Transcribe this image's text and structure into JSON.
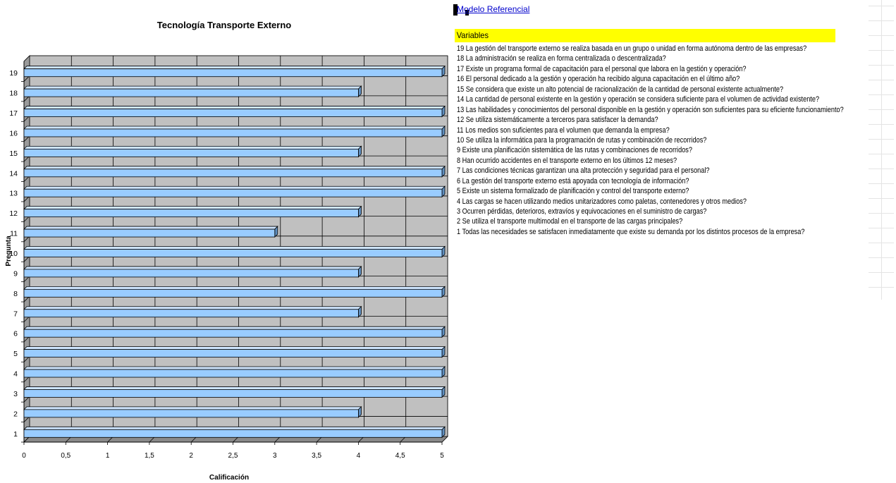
{
  "chart_data": {
    "type": "bar",
    "orientation": "horizontal",
    "title": "Tecnología Transporte Externo",
    "xlabel": "Calificación",
    "ylabel": "Pregunta",
    "categories": [
      "1",
      "2",
      "3",
      "4",
      "5",
      "6",
      "7",
      "8",
      "9",
      "10",
      "11",
      "12",
      "13",
      "14",
      "15",
      "16",
      "17",
      "18",
      "19"
    ],
    "values": [
      5,
      4,
      5,
      5,
      5,
      5,
      4,
      5,
      4,
      5,
      3,
      4,
      5,
      5,
      4,
      5,
      5,
      4,
      5
    ],
    "xlim": [
      0,
      5
    ],
    "xticks": [
      "0",
      "0,5",
      "1",
      "1,5",
      "2",
      "2,5",
      "3",
      "3,5",
      "4",
      "4,5",
      "5"
    ],
    "grid": true,
    "bar_color": "#99ccff",
    "plot_background": "#c0c0c0"
  },
  "link": {
    "label": "Modelo Referencial"
  },
  "variables": {
    "header": "Variables",
    "items": [
      "19  La gestión del transporte externo se realiza basada en un grupo o unidad en forma autónoma dentro de las empresas?",
      "18  La administración se realiza en forma centralizada o descentralizada?",
      "17  Existe un programa formal de capacitación para el personal que labora en la gestión y operación?",
      "16  El personal dedicado a la gestión y operación ha recibido alguna capacitación en el último año?",
      "15  Se considera que existe un alto potencial de racionalización de la cantidad de personal existente actualmente?",
      "14  La cantidad de personal existente en la gestión y operación se considera suficiente para el volumen de actividad existente?",
      "13  Las habilidades y conocimientos del personal disponible en la gestión y operación son suficientes para su eficiente funcionamiento?",
      "12  Se utiliza sistemáticamente a terceros para satisfacer la demanda?",
      "11  Los medios son suficientes para el volumen que demanda la empresa?",
      "10  Se utiliza la informática para la programación de rutas y combinación de recorridos?",
      "9  Existe una planificación sistemática de las rutas y combinaciones de recorridos?",
      "8  Han ocurrido accidentes en el transporte externo en los últimos 12 meses?",
      "7  Las condiciones técnicas garantizan una alta protección y seguridad para el personal?",
      "6  La gestión del transporte externo está apoyada con tecnología de información?",
      "5  Existe un sistema formalizado de planificación y control del transporte externo?",
      "4  Las cargas se hacen utilizando medios unitarizadores como paletas, contenedores y otros medios?",
      "3  Ocurren pérdidas, deterioros, extravíos y equivocaciones en el suministro de cargas?",
      "2  Se utiliza el transporte multimodal en el transporte de las cargas principales?",
      "1  Todas las necesidades se satisfacen inmediatamente que existe su demanda por los distintos procesos de la empresa?"
    ]
  }
}
